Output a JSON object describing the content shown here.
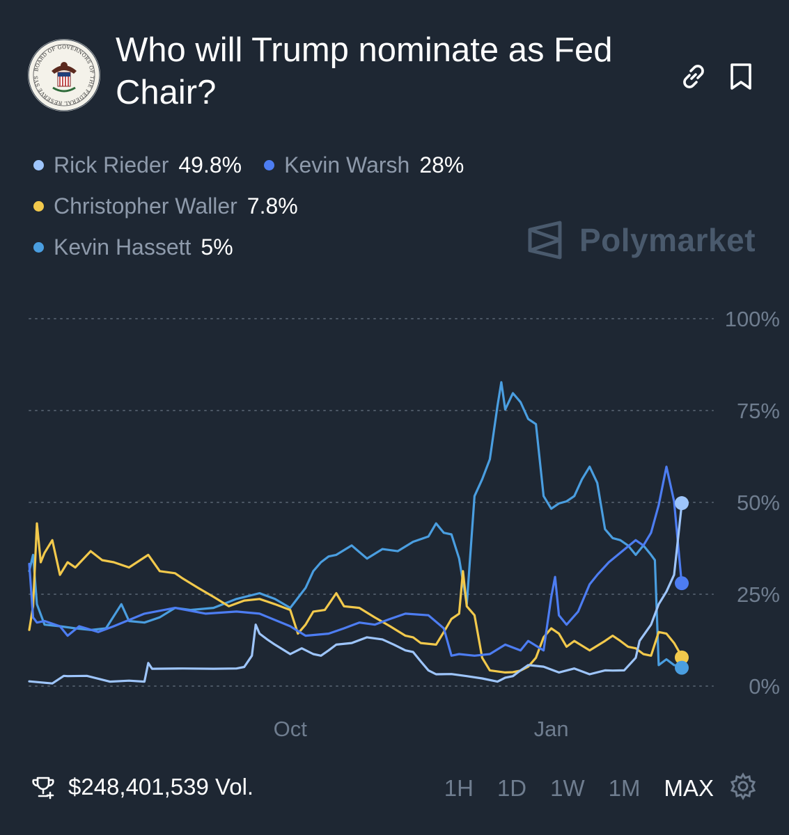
{
  "market": {
    "title": "Who will Trump nominate as Fed Chair?",
    "seal_text": "BOARD OF GOVERNORS OF THE FEDERAL RESERVE SYSTEM",
    "brand": "Polymarket"
  },
  "legend": [
    {
      "name": "Rick Rieder",
      "value": "49.8%",
      "color": "#9ec5fb"
    },
    {
      "name": "Kevin Warsh",
      "value": "28%",
      "color": "#4d7df2"
    },
    {
      "name": "Christopher Waller",
      "value": "7.8%",
      "color": "#f2c94c"
    },
    {
      "name": "Kevin Hassett",
      "value": "5%",
      "color": "#4a9ee0"
    }
  ],
  "footer": {
    "volume": "$248,401,539 Vol.",
    "ranges": [
      "1H",
      "1D",
      "1W",
      "1M",
      "MAX"
    ],
    "active_range": "MAX"
  },
  "icons": {
    "link": "link-icon",
    "bookmark": "bookmark-icon",
    "trophy": "trophy-icon",
    "settings": "gear-icon"
  },
  "chart_data": {
    "type": "line",
    "x_axis": {
      "ticks": [
        "Oct",
        "Jan"
      ]
    },
    "y_axis": {
      "ticks": [
        "100%",
        "75%",
        "50%",
        "25%",
        "0%"
      ],
      "ylim": [
        0,
        100
      ],
      "position": "right"
    },
    "grid": true,
    "series": [
      {
        "name": "Rick Rieder",
        "color": "#9ec5fb",
        "values": [
          [
            0,
            1
          ],
          [
            6,
            1
          ],
          [
            9,
            2.5
          ],
          [
            10,
            3
          ],
          [
            15,
            2.5
          ],
          [
            21,
            1.5
          ],
          [
            26,
            1.2
          ],
          [
            30,
            1.5
          ],
          [
            31,
            6
          ],
          [
            32,
            5
          ],
          [
            40,
            4.5
          ],
          [
            48,
            5
          ],
          [
            54,
            4.5
          ],
          [
            56,
            5.5
          ],
          [
            58,
            8
          ],
          [
            59,
            17
          ],
          [
            60,
            14
          ],
          [
            62,
            13
          ],
          [
            64,
            11
          ],
          [
            68,
            9
          ],
          [
            71,
            10
          ],
          [
            74,
            9
          ],
          [
            76,
            8
          ],
          [
            78,
            10
          ],
          [
            80,
            11
          ],
          [
            84,
            12
          ],
          [
            88,
            13
          ],
          [
            92,
            13
          ],
          [
            95,
            11
          ],
          [
            98,
            10
          ],
          [
            100,
            9
          ],
          [
            102,
            7
          ],
          [
            104,
            4
          ],
          [
            106,
            3.5
          ],
          [
            110,
            3
          ],
          [
            114,
            3
          ],
          [
            118,
            1.8
          ],
          [
            122,
            1.5
          ],
          [
            124,
            2
          ],
          [
            126,
            3
          ],
          [
            128,
            4
          ],
          [
            130,
            6
          ],
          [
            134,
            5
          ],
          [
            138,
            4
          ],
          [
            142,
            4.5
          ],
          [
            146,
            3.5
          ],
          [
            150,
            4
          ],
          [
            152,
            4.5
          ],
          [
            155,
            4
          ],
          [
            158,
            8
          ],
          [
            159,
            12
          ],
          [
            162,
            17
          ],
          [
            164,
            22
          ],
          [
            166,
            26
          ],
          [
            168,
            30
          ],
          [
            170,
            49.8
          ]
        ]
      },
      {
        "name": "Kevin Warsh",
        "color": "#4d7df2",
        "values": [
          [
            0,
            33
          ],
          [
            1,
            19
          ],
          [
            2,
            17
          ],
          [
            4,
            18
          ],
          [
            8,
            16
          ],
          [
            10,
            14
          ],
          [
            13,
            16
          ],
          [
            18,
            15
          ],
          [
            22,
            16
          ],
          [
            30,
            20
          ],
          [
            38,
            21
          ],
          [
            46,
            20
          ],
          [
            54,
            20
          ],
          [
            60,
            20
          ],
          [
            68,
            16
          ],
          [
            72,
            14
          ],
          [
            78,
            14
          ],
          [
            82,
            16
          ],
          [
            86,
            17
          ],
          [
            90,
            17
          ],
          [
            94,
            18
          ],
          [
            98,
            20
          ],
          [
            104,
            19
          ],
          [
            108,
            16
          ],
          [
            110,
            8
          ],
          [
            112,
            9
          ],
          [
            116,
            8
          ],
          [
            120,
            9
          ],
          [
            124,
            11
          ],
          [
            128,
            10
          ],
          [
            130,
            12
          ],
          [
            134,
            10
          ],
          [
            136,
            24
          ],
          [
            137,
            30
          ],
          [
            138,
            19
          ],
          [
            140,
            17
          ],
          [
            143,
            20
          ],
          [
            146,
            28
          ],
          [
            148,
            30
          ],
          [
            151,
            34
          ],
          [
            154,
            36
          ],
          [
            158,
            40
          ],
          [
            160,
            38
          ],
          [
            162,
            42
          ],
          [
            164,
            49
          ],
          [
            166,
            60
          ],
          [
            168,
            50
          ],
          [
            170,
            28
          ]
        ]
      },
      {
        "name": "Christopher Waller",
        "color": "#f2c94c",
        "values": [
          [
            0,
            15
          ],
          [
            1,
            22
          ],
          [
            2,
            44
          ],
          [
            3,
            34
          ],
          [
            4,
            36
          ],
          [
            6,
            40
          ],
          [
            8,
            30
          ],
          [
            10,
            34
          ],
          [
            12,
            32
          ],
          [
            16,
            37
          ],
          [
            19,
            34
          ],
          [
            22,
            34
          ],
          [
            26,
            32
          ],
          [
            31,
            36
          ],
          [
            34,
            31
          ],
          [
            38,
            31
          ],
          [
            40,
            29
          ],
          [
            44,
            27
          ],
          [
            48,
            24
          ],
          [
            52,
            22
          ],
          [
            56,
            23
          ],
          [
            60,
            24
          ],
          [
            64,
            22
          ],
          [
            68,
            21
          ],
          [
            70,
            14
          ],
          [
            72,
            17
          ],
          [
            74,
            20
          ],
          [
            77,
            21
          ],
          [
            80,
            25
          ],
          [
            82,
            22
          ],
          [
            86,
            21
          ],
          [
            90,
            19
          ],
          [
            94,
            16
          ],
          [
            98,
            14
          ],
          [
            100,
            13
          ],
          [
            102,
            12
          ],
          [
            106,
            11
          ],
          [
            108,
            15
          ],
          [
            110,
            18
          ],
          [
            112,
            20
          ],
          [
            113,
            31
          ],
          [
            114,
            22
          ],
          [
            116,
            19
          ],
          [
            118,
            8
          ],
          [
            120,
            4
          ],
          [
            124,
            4
          ],
          [
            126,
            3.5
          ],
          [
            128,
            4.5
          ],
          [
            130,
            5
          ],
          [
            132,
            8
          ],
          [
            134,
            13
          ],
          [
            136,
            16
          ],
          [
            138,
            14
          ],
          [
            140,
            11
          ],
          [
            142,
            12
          ],
          [
            146,
            10
          ],
          [
            150,
            12
          ],
          [
            152,
            14
          ],
          [
            154,
            12
          ],
          [
            156,
            11
          ],
          [
            158,
            10
          ],
          [
            160,
            9
          ],
          [
            162,
            8
          ],
          [
            164,
            15
          ],
          [
            166,
            14
          ],
          [
            168,
            12
          ],
          [
            170,
            7.8
          ]
        ]
      },
      {
        "name": "Kevin Hassett",
        "color": "#4a9ee0",
        "values": [
          [
            0,
            31
          ],
          [
            1,
            36
          ],
          [
            2,
            22
          ],
          [
            4,
            17
          ],
          [
            8,
            16
          ],
          [
            12,
            16
          ],
          [
            16,
            15
          ],
          [
            20,
            16
          ],
          [
            24,
            22
          ],
          [
            26,
            18
          ],
          [
            30,
            17
          ],
          [
            34,
            19
          ],
          [
            38,
            21
          ],
          [
            42,
            21
          ],
          [
            48,
            21
          ],
          [
            54,
            24
          ],
          [
            60,
            25
          ],
          [
            64,
            24
          ],
          [
            68,
            21
          ],
          [
            72,
            27
          ],
          [
            74,
            31
          ],
          [
            76,
            34
          ],
          [
            78,
            35
          ],
          [
            80,
            36
          ],
          [
            84,
            38
          ],
          [
            88,
            35
          ],
          [
            92,
            37
          ],
          [
            96,
            37
          ],
          [
            100,
            39
          ],
          [
            104,
            41
          ],
          [
            106,
            44
          ],
          [
            108,
            42
          ],
          [
            110,
            41
          ],
          [
            112,
            35
          ],
          [
            114,
            22
          ],
          [
            116,
            52
          ],
          [
            118,
            56
          ],
          [
            120,
            62
          ],
          [
            122,
            76
          ],
          [
            123,
            83
          ],
          [
            124,
            75
          ],
          [
            126,
            80
          ],
          [
            128,
            77
          ],
          [
            130,
            73
          ],
          [
            132,
            71
          ],
          [
            134,
            52
          ],
          [
            136,
            48
          ],
          [
            138,
            50
          ],
          [
            140,
            50
          ],
          [
            142,
            52
          ],
          [
            144,
            56
          ],
          [
            146,
            60
          ],
          [
            148,
            55
          ],
          [
            150,
            43
          ],
          [
            152,
            40
          ],
          [
            154,
            40
          ],
          [
            156,
            38
          ],
          [
            158,
            36
          ],
          [
            160,
            38
          ],
          [
            162,
            36
          ],
          [
            163,
            34
          ],
          [
            164,
            6
          ],
          [
            166,
            7
          ],
          [
            168,
            6
          ],
          [
            170,
            5
          ]
        ]
      }
    ]
  }
}
